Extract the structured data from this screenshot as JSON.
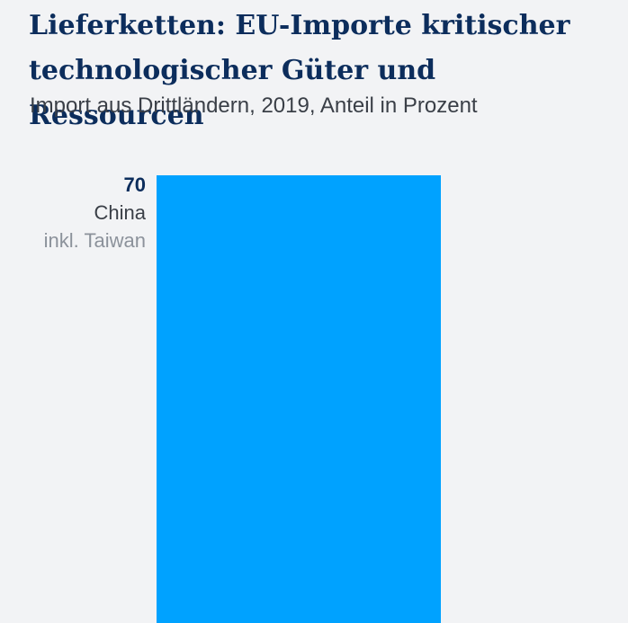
{
  "chart_data": {
    "type": "bar",
    "title": "Lieferketten: EU-Importe kritischer technologischer Güter und Ressourcen",
    "subtitle": "Import aus Drittländern, 2019, Anteil in Prozent",
    "categories": [
      "China"
    ],
    "category_sublabels": [
      "inkl. Taiwan"
    ],
    "values": [
      70
    ],
    "value_labels": [
      "70"
    ],
    "bar_color": "#00a2ff",
    "ylim": [
      0,
      70
    ],
    "grid": false,
    "legend": "none"
  }
}
